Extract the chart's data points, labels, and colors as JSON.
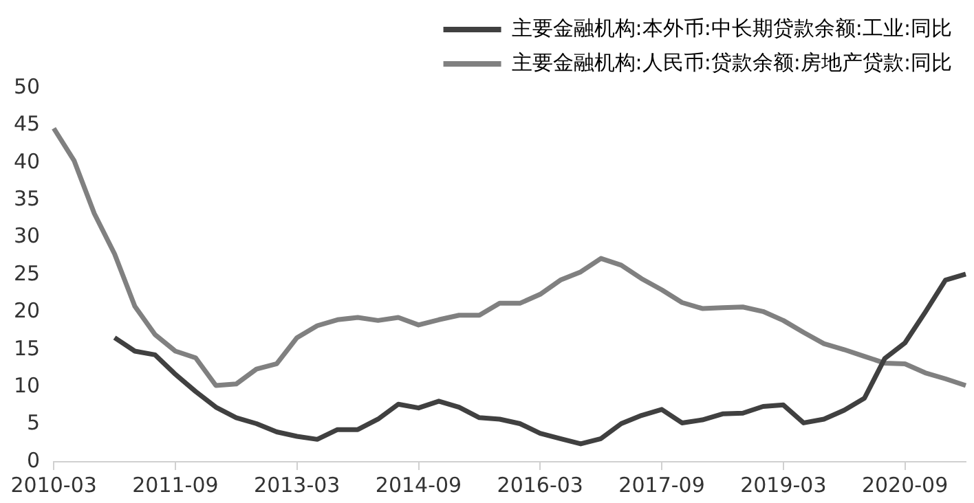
{
  "chart_data": {
    "type": "line",
    "categories": [
      "2010-03",
      null,
      null,
      null,
      null,
      null,
      "2011-09",
      null,
      null,
      null,
      null,
      null,
      "2013-03",
      null,
      null,
      null,
      null,
      null,
      "2014-09",
      null,
      null,
      null,
      null,
      null,
      "2016-03",
      null,
      null,
      null,
      null,
      null,
      "2017-09",
      null,
      null,
      null,
      null,
      null,
      "2019-03",
      null,
      null,
      null,
      null,
      null,
      "2020-09",
      null,
      null,
      null
    ],
    "series": [
      {
        "name": "主要金融机构:本外币:中长期贷款余额:工业:同比",
        "color": "#404040",
        "values": [
          null,
          null,
          null,
          16.6,
          14.8,
          14.3,
          11.7,
          9.4,
          7.3,
          5.9,
          5.1,
          4.0,
          3.4,
          3.0,
          4.3,
          4.3,
          5.7,
          7.7,
          7.2,
          8.1,
          7.3,
          5.9,
          5.7,
          5.1,
          3.8,
          3.1,
          2.4,
          3.1,
          5.1,
          6.2,
          7.0,
          5.2,
          5.6,
          6.4,
          6.5,
          7.4,
          7.6,
          5.2,
          5.7,
          6.9,
          8.5,
          13.8,
          15.9,
          20.0,
          24.3,
          25.1
        ]
      },
      {
        "name": "主要金融机构:人民币:贷款余额:房地产贷款:同比",
        "color": "#808080",
        "values": [
          44.6,
          40.3,
          33.2,
          27.8,
          20.8,
          17.0,
          14.8,
          13.9,
          10.2,
          10.4,
          12.4,
          13.1,
          16.6,
          18.2,
          19.0,
          19.3,
          18.9,
          19.3,
          18.3,
          19.0,
          19.6,
          19.6,
          21.2,
          21.2,
          22.4,
          24.3,
          25.4,
          27.2,
          26.3,
          24.5,
          23.0,
          21.3,
          20.5,
          20.6,
          20.7,
          20.1,
          18.9,
          17.3,
          15.8,
          15.0,
          14.1,
          13.2,
          13.1,
          11.9,
          11.1,
          10.2
        ]
      }
    ],
    "ylim": [
      0,
      50
    ],
    "yticks": [
      0,
      5,
      10,
      15,
      20,
      25,
      30,
      35,
      40,
      45,
      50
    ],
    "legend": "top right",
    "grid": false
  }
}
